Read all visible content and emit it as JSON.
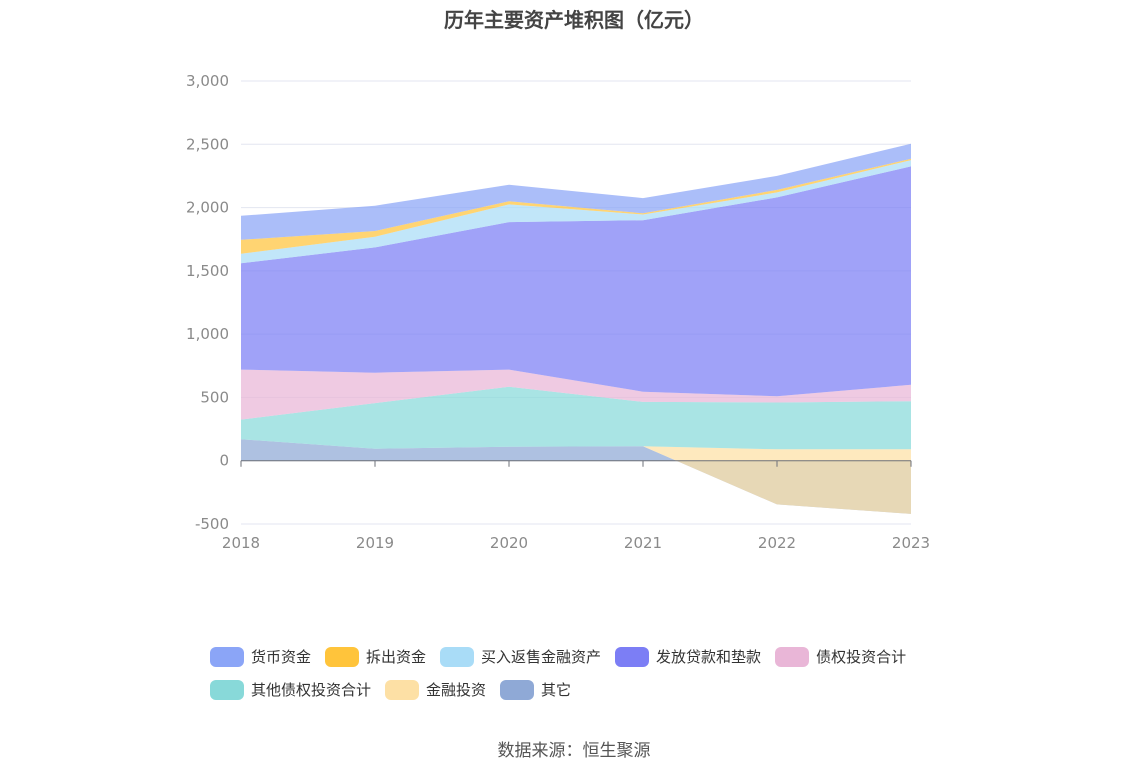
{
  "chart_data": {
    "type": "area",
    "stacked": true,
    "title": "历年主要资产堆积图（亿元）",
    "source": "数据来源：恒生聚源",
    "x": [
      "2018",
      "2019",
      "2020",
      "2021",
      "2022",
      "2023"
    ],
    "y_ticks": [
      "3,000",
      "2,500",
      "2,000",
      "1,500",
      "1,000",
      "500",
      "0",
      "-500"
    ],
    "ylim": [
      -500,
      3000
    ],
    "legend_position": "bottom",
    "series": [
      {
        "name": "其它",
        "color": "#8fa9d6",
        "values": [
          170,
          95,
          110,
          115,
          -345,
          -420
        ]
      },
      {
        "name": "金融投资",
        "color": "#fde0a5",
        "values": [
          0,
          0,
          0,
          0,
          435,
          510
        ]
      },
      {
        "name": "其他债权投资合计",
        "color": "#88d9d9",
        "values": [
          155,
          360,
          475,
          350,
          370,
          380
        ]
      },
      {
        "name": "债权投资合计",
        "color": "#e9b6d7",
        "values": [
          395,
          240,
          135,
          80,
          50,
          130
        ]
      },
      {
        "name": "发放贷款和垫款",
        "color": "#7c7ef5",
        "values": [
          840,
          990,
          1165,
          1355,
          1570,
          1725
        ]
      },
      {
        "name": "买入返售金融资产",
        "color": "#a9dcf7",
        "values": [
          75,
          85,
          140,
          45,
          40,
          50
        ]
      },
      {
        "name": "拆出资金",
        "color": "#ffc43b",
        "values": [
          110,
          45,
          25,
          10,
          20,
          10
        ]
      },
      {
        "name": "货币资金",
        "color": "#8ba5f7",
        "values": [
          190,
          200,
          130,
          120,
          110,
          120
        ]
      }
    ],
    "legend_rows": [
      [
        {
          "name": "货币资金",
          "color": "#8ba5f7"
        },
        {
          "name": "拆出资金",
          "color": "#ffc43b"
        },
        {
          "name": "买入返售金融资产",
          "color": "#a9dcf7"
        },
        {
          "name": "发放贷款和垫款",
          "color": "#7c7ef5"
        },
        {
          "name": "债权投资合计",
          "color": "#e9b6d7"
        }
      ],
      [
        {
          "name": "其他债权投资合计",
          "color": "#88d9d9"
        },
        {
          "name": "金融投资",
          "color": "#fde0a5"
        },
        {
          "name": "其它",
          "color": "#8fa9d6"
        }
      ]
    ]
  }
}
